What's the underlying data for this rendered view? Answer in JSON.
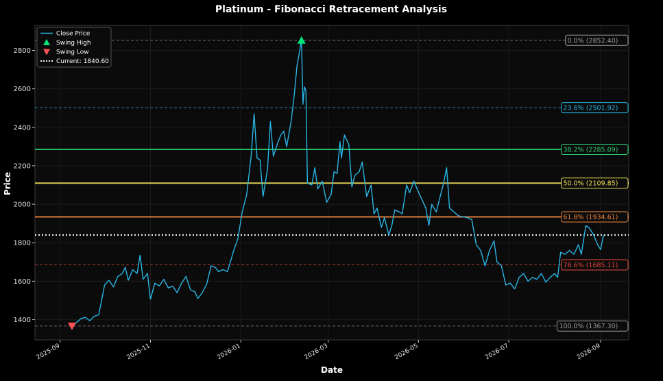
{
  "chart_data": {
    "type": "line",
    "title": "Platinum - Fibonacci Retracement Analysis",
    "xlabel": "Date",
    "ylabel": "Price",
    "xlim": [
      "2025-08-15",
      "2026-09-20"
    ],
    "ylim": [
      1295,
      2930
    ],
    "x_ticks": [
      {
        "date": "2025-09-01",
        "label": "2025-09"
      },
      {
        "date": "2025-11-01",
        "label": "2025-11"
      },
      {
        "date": "2026-01-01",
        "label": "2026-01"
      },
      {
        "date": "2026-03-01",
        "label": "2026-03"
      },
      {
        "date": "2026-05-01",
        "label": "2026-05"
      },
      {
        "date": "2026-07-01",
        "label": "2026-07"
      },
      {
        "date": "2026-09-01",
        "label": "2026-09"
      }
    ],
    "y_ticks": [
      1400,
      1600,
      1800,
      2000,
      2200,
      2400,
      2600,
      2800
    ],
    "grid": true,
    "legend_position": "top-left",
    "legend": [
      {
        "label": "Close Price",
        "kind": "line",
        "color": "#29b6e6"
      },
      {
        "label": "Swing High",
        "kind": "marker-up",
        "color": "#00e676"
      },
      {
        "label": "Swing Low",
        "kind": "marker-down",
        "color": "#ff5252"
      },
      {
        "label": "Current: 1840.60",
        "kind": "dotted",
        "color": "#ffffff"
      }
    ],
    "series": [
      {
        "name": "Close Price",
        "color": "#29b6e6",
        "points": [
          [
            "2025-09-09",
            1367
          ],
          [
            "2025-09-12",
            1385
          ],
          [
            "2025-09-15",
            1405
          ],
          [
            "2025-09-18",
            1412
          ],
          [
            "2025-09-21",
            1395
          ],
          [
            "2025-09-24",
            1418
          ],
          [
            "2025-09-27",
            1425
          ],
          [
            "2025-09-29",
            1500
          ],
          [
            "2025-10-01",
            1580
          ],
          [
            "2025-10-04",
            1605
          ],
          [
            "2025-10-07",
            1570
          ],
          [
            "2025-10-10",
            1625
          ],
          [
            "2025-10-13",
            1640
          ],
          [
            "2025-10-15",
            1672
          ],
          [
            "2025-10-17",
            1605
          ],
          [
            "2025-10-20",
            1660
          ],
          [
            "2025-10-23",
            1640
          ],
          [
            "2025-10-25",
            1735
          ],
          [
            "2025-10-27",
            1610
          ],
          [
            "2025-10-30",
            1640
          ],
          [
            "2025-11-01",
            1507
          ],
          [
            "2025-11-04",
            1590
          ],
          [
            "2025-11-07",
            1575
          ],
          [
            "2025-11-10",
            1610
          ],
          [
            "2025-11-13",
            1565
          ],
          [
            "2025-11-16",
            1575
          ],
          [
            "2025-11-19",
            1540
          ],
          [
            "2025-11-22",
            1590
          ],
          [
            "2025-11-25",
            1625
          ],
          [
            "2025-11-28",
            1555
          ],
          [
            "2025-12-01",
            1545
          ],
          [
            "2025-12-03",
            1510
          ],
          [
            "2025-12-06",
            1540
          ],
          [
            "2025-12-09",
            1585
          ],
          [
            "2025-12-12",
            1680
          ],
          [
            "2025-12-15",
            1670
          ],
          [
            "2025-12-17",
            1650
          ],
          [
            "2025-12-20",
            1660
          ],
          [
            "2025-12-23",
            1650
          ],
          [
            "2025-12-25",
            1700
          ],
          [
            "2025-12-27",
            1755
          ],
          [
            "2025-12-30",
            1820
          ],
          [
            "2026-01-02",
            1960
          ],
          [
            "2026-01-05",
            2050
          ],
          [
            "2026-01-08",
            2250
          ],
          [
            "2026-01-10",
            2470
          ],
          [
            "2026-01-12",
            2240
          ],
          [
            "2026-01-14",
            2230
          ],
          [
            "2026-01-16",
            2040
          ],
          [
            "2026-01-19",
            2180
          ],
          [
            "2026-01-21",
            2430
          ],
          [
            "2026-01-23",
            2250
          ],
          [
            "2026-01-26",
            2320
          ],
          [
            "2026-01-28",
            2360
          ],
          [
            "2026-01-30",
            2380
          ],
          [
            "2026-02-01",
            2300
          ],
          [
            "2026-02-04",
            2430
          ],
          [
            "2026-02-06",
            2560
          ],
          [
            "2026-02-08",
            2720
          ],
          [
            "2026-02-11",
            2852
          ],
          [
            "2026-02-12",
            2520
          ],
          [
            "2026-02-13",
            2610
          ],
          [
            "2026-02-14",
            2590
          ],
          [
            "2026-02-15",
            2110
          ],
          [
            "2026-02-18",
            2100
          ],
          [
            "2026-02-20",
            2190
          ],
          [
            "2026-02-22",
            2080
          ],
          [
            "2026-02-25",
            2120
          ],
          [
            "2026-02-28",
            2010
          ],
          [
            "2026-03-03",
            2050
          ],
          [
            "2026-03-05",
            2170
          ],
          [
            "2026-03-07",
            2160
          ],
          [
            "2026-03-09",
            2325
          ],
          [
            "2026-03-10",
            2240
          ],
          [
            "2026-03-12",
            2360
          ],
          [
            "2026-03-15",
            2310
          ],
          [
            "2026-03-17",
            2090
          ],
          [
            "2026-03-19",
            2150
          ],
          [
            "2026-03-22",
            2170
          ],
          [
            "2026-03-24",
            2220
          ],
          [
            "2026-03-27",
            2040
          ],
          [
            "2026-03-30",
            2100
          ],
          [
            "2026-04-01",
            1950
          ],
          [
            "2026-04-03",
            1980
          ],
          [
            "2026-04-06",
            1880
          ],
          [
            "2026-04-08",
            1930
          ],
          [
            "2026-04-11",
            1840
          ],
          [
            "2026-04-13",
            1890
          ],
          [
            "2026-04-15",
            1970
          ],
          [
            "2026-04-18",
            1960
          ],
          [
            "2026-04-20",
            1950
          ],
          [
            "2026-04-23",
            2100
          ],
          [
            "2026-04-25",
            2060
          ],
          [
            "2026-04-28",
            2120
          ],
          [
            "2026-04-30",
            2080
          ],
          [
            "2026-05-03",
            2030
          ],
          [
            "2026-05-06",
            1980
          ],
          [
            "2026-05-08",
            1890
          ],
          [
            "2026-05-10",
            2000
          ],
          [
            "2026-05-13",
            1960
          ],
          [
            "2026-05-16",
            2050
          ],
          [
            "2026-05-18",
            2110
          ],
          [
            "2026-05-20",
            2190
          ],
          [
            "2026-05-22",
            1980
          ],
          [
            "2026-05-25",
            1960
          ],
          [
            "2026-05-28",
            1940
          ],
          [
            "2026-05-31",
            1935
          ],
          [
            "2026-06-03",
            1930
          ],
          [
            "2026-06-06",
            1920
          ],
          [
            "2026-06-09",
            1790
          ],
          [
            "2026-06-12",
            1760
          ],
          [
            "2026-06-15",
            1680
          ],
          [
            "2026-06-18",
            1760
          ],
          [
            "2026-06-21",
            1810
          ],
          [
            "2026-06-23",
            1700
          ],
          [
            "2026-06-26",
            1680
          ],
          [
            "2026-06-29",
            1580
          ],
          [
            "2026-07-02",
            1590
          ],
          [
            "2026-07-05",
            1560
          ],
          [
            "2026-07-08",
            1620
          ],
          [
            "2026-07-11",
            1640
          ],
          [
            "2026-07-14",
            1600
          ],
          [
            "2026-07-17",
            1620
          ],
          [
            "2026-07-20",
            1610
          ],
          [
            "2026-07-23",
            1640
          ],
          [
            "2026-07-26",
            1595
          ],
          [
            "2026-07-29",
            1620
          ],
          [
            "2026-08-01",
            1640
          ],
          [
            "2026-08-03",
            1620
          ],
          [
            "2026-08-05",
            1750
          ],
          [
            "2026-08-08",
            1740
          ],
          [
            "2026-08-11",
            1760
          ],
          [
            "2026-08-14",
            1740
          ],
          [
            "2026-08-17",
            1790
          ],
          [
            "2026-08-19",
            1740
          ],
          [
            "2026-08-22",
            1888
          ],
          [
            "2026-08-24",
            1880
          ],
          [
            "2026-08-27",
            1845
          ],
          [
            "2026-08-30",
            1790
          ],
          [
            "2026-09-01",
            1765
          ],
          [
            "2026-09-03",
            1840.6
          ]
        ]
      }
    ],
    "swing_high": {
      "date": "2026-02-11",
      "price": 2852.4
    },
    "swing_low": {
      "date": "2025-09-09",
      "price": 1367.3
    },
    "current_price": 1840.6,
    "fib_levels": [
      {
        "label": "0.0% (2852.40)",
        "value": 2852.4,
        "color": "#9e9e9e",
        "style": "dashed",
        "weight": 1
      },
      {
        "label": "23.6% (2501.92)",
        "value": 2501.92,
        "color": "#29b6e6",
        "style": "dashed",
        "weight": 1
      },
      {
        "label": "38.2% (2285.09)",
        "value": 2285.09,
        "color": "#2ecc71",
        "style": "solid",
        "weight": 2
      },
      {
        "label": "50.0% (2109.85)",
        "value": 2109.85,
        "color": "#f1e05a",
        "style": "solid",
        "weight": 2
      },
      {
        "label": "61.8% (1934.61)",
        "value": 1934.61,
        "color": "#f0883e",
        "style": "solid",
        "weight": 2
      },
      {
        "label": "78.6% (1685.11)",
        "value": 1685.11,
        "color": "#e74c3c",
        "style": "dashed",
        "weight": 1
      },
      {
        "label": "100.0% (1367.30)",
        "value": 1367.3,
        "color": "#9e9e9e",
        "style": "dashed",
        "weight": 1
      }
    ]
  }
}
